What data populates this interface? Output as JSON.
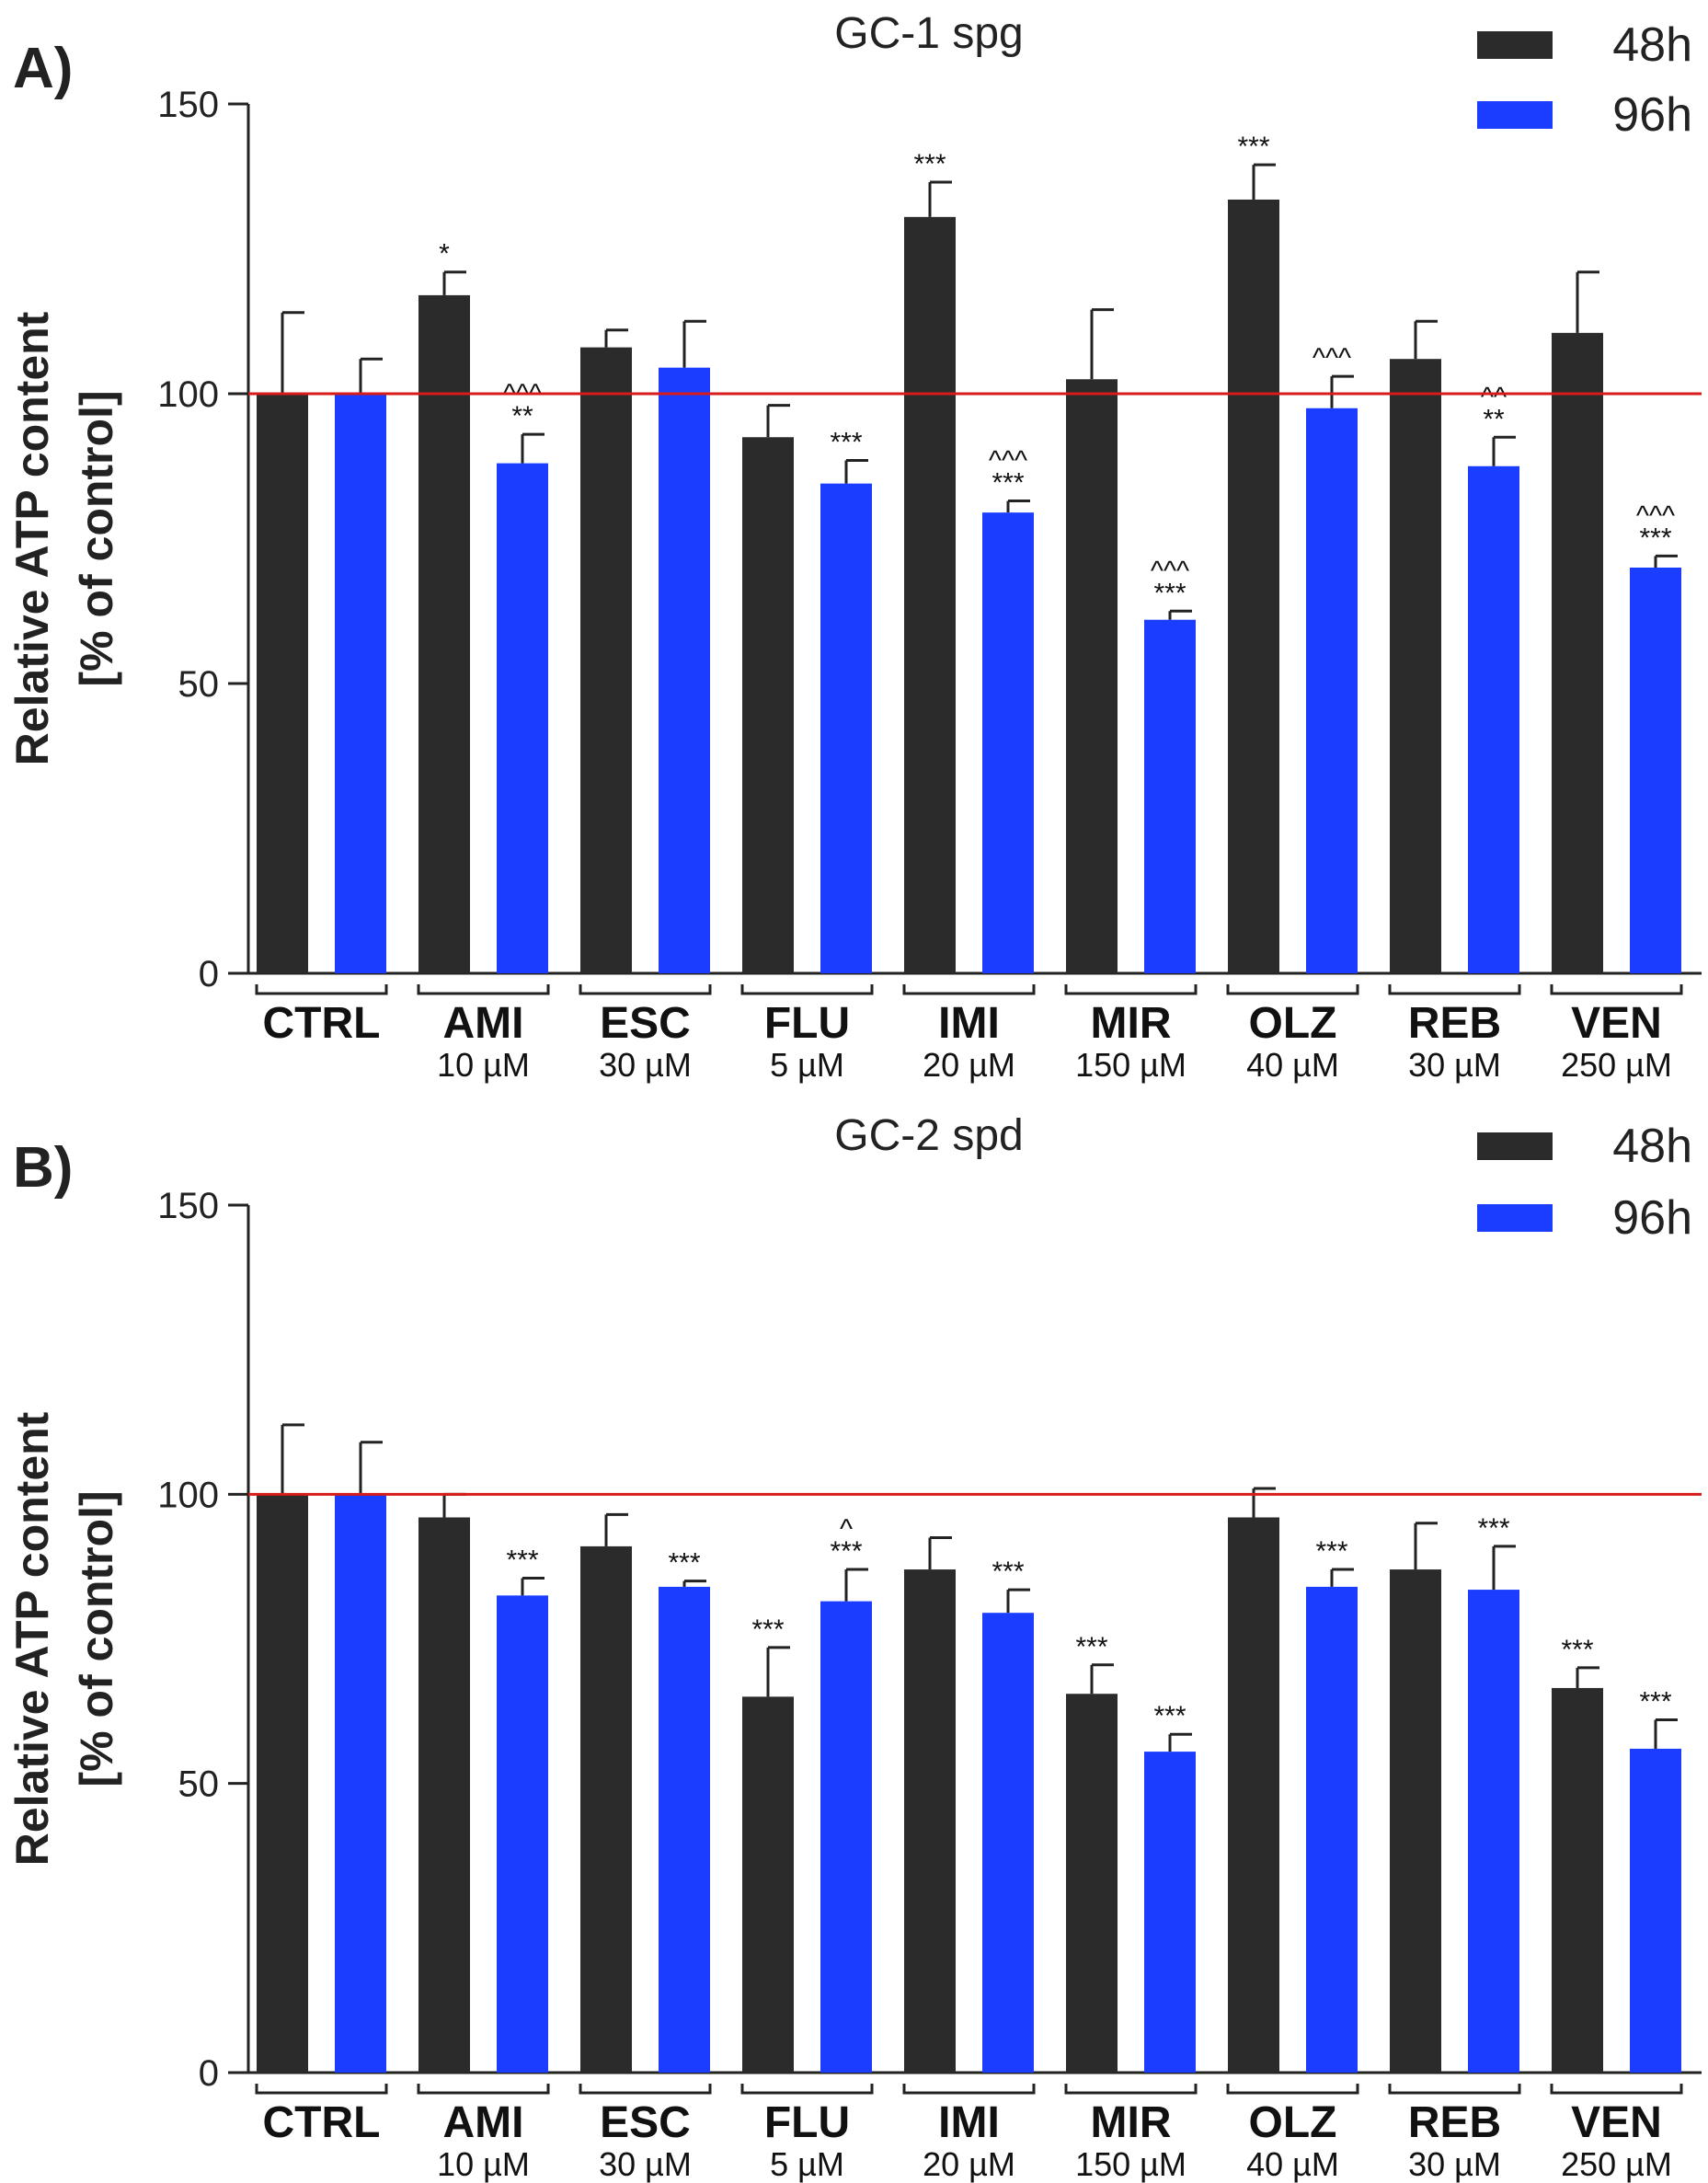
{
  "chart_data": [
    {
      "type": "bar",
      "panel": "A)",
      "title": "GC-1 spg",
      "ylabel_line1": "Relative ATP content",
      "ylabel_line2": "[% of control]",
      "ylim": [
        0,
        150
      ],
      "yticks": [
        0,
        50,
        100,
        150
      ],
      "reference_line": 100,
      "categories": [
        "CTRL",
        "AMI",
        "ESC",
        "FLU",
        "IMI",
        "MIR",
        "OLZ",
        "REB",
        "VEN"
      ],
      "concentrations": [
        "",
        "10 µM",
        "30 µM",
        "5 µM",
        "20 µM",
        "150 µM",
        "40 µM",
        "30 µM",
        "250 µM"
      ],
      "legend": [
        "48h",
        "96h"
      ],
      "series": [
        {
          "name": "48h",
          "color": "#2b2b2b",
          "values": [
            100,
            117,
            108,
            92.5,
            130.5,
            102.5,
            133.5,
            106,
            110.5
          ],
          "errors": [
            14,
            4,
            3,
            5.5,
            6,
            12,
            6,
            6.5,
            10.5
          ],
          "significance": [
            "",
            "*",
            "",
            "",
            "***",
            "",
            "***",
            "",
            ""
          ]
        },
        {
          "name": "96h",
          "color": "#1a3dff",
          "values": [
            100,
            88,
            104.5,
            84.5,
            79.5,
            61,
            97.5,
            87.5,
            70
          ],
          "errors": [
            6,
            5,
            8,
            4,
            2,
            1.5,
            5.5,
            5,
            2
          ],
          "significance": [
            "",
            "^^^\n**",
            "",
            "***",
            "^^^\n***",
            "^^^\n***",
            "^^^",
            "^^\n**",
            "^^^\n***"
          ]
        }
      ]
    },
    {
      "type": "bar",
      "panel": "B)",
      "title": "GC-2 spd",
      "ylabel_line1": "Relative ATP content",
      "ylabel_line2": "[% of control]",
      "ylim": [
        0,
        150
      ],
      "yticks": [
        0,
        50,
        100,
        150
      ],
      "reference_line": 100,
      "categories": [
        "CTRL",
        "AMI",
        "ESC",
        "FLU",
        "IMI",
        "MIR",
        "OLZ",
        "REB",
        "VEN"
      ],
      "concentrations": [
        "",
        "10 µM",
        "30 µM",
        "5 µM",
        "20 µM",
        "150 µM",
        "40 µM",
        "30 µM",
        "250 µM"
      ],
      "legend": [
        "48h",
        "96h"
      ],
      "series": [
        {
          "name": "48h",
          "color": "#2b2b2b",
          "values": [
            100,
            96,
            91,
            65,
            87,
            65.5,
            96,
            87,
            66.5
          ],
          "errors": [
            12,
            4,
            5.5,
            8.5,
            5.5,
            5,
            5,
            8,
            3.5
          ],
          "significance": [
            "",
            "",
            "",
            "***",
            "",
            "***",
            "",
            "",
            "***"
          ]
        },
        {
          "name": "96h",
          "color": "#1a3dff",
          "values": [
            100,
            82.5,
            84,
            81.5,
            79.5,
            55.5,
            84,
            83.5,
            56
          ],
          "errors": [
            9,
            3,
            1,
            5.5,
            4,
            3,
            3,
            7.5,
            5
          ],
          "significance": [
            "",
            "***",
            "***",
            "^\n***",
            "***",
            "***",
            "***",
            "***",
            "***"
          ]
        }
      ]
    }
  ]
}
